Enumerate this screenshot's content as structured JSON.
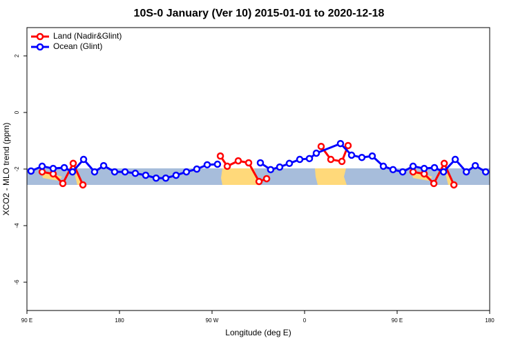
{
  "chart_data": {
    "type": "line",
    "title": "10S-0 January (Ver 10)   2015-01-01 to 2020-12-18",
    "x_label": "Longitude (deg E)",
    "y_label": "XCO2 - MLO trend (ppm)",
    "xlim": [
      90,
      540
    ],
    "xticks": [
      {
        "value": 90,
        "label": "90 E"
      },
      {
        "value": 180,
        "label": "180"
      },
      {
        "value": 270,
        "label": "90 W"
      },
      {
        "value": 360,
        "label": "0"
      },
      {
        "value": 450,
        "label": "90 E"
      },
      {
        "value": 540,
        "label": "180"
      }
    ],
    "ylim": [
      -7,
      3
    ],
    "yticks": [
      -6,
      -4,
      -2,
      0,
      2
    ],
    "legend": "top-left",
    "series": [
      {
        "name": "Land (Nadir&Glint)",
        "color": "#ff0000",
        "x": [
          104.8,
          115.5,
          124.9,
          135.0,
          144.4,
          null,
          278.1,
          284.8,
          295.5,
          305.6,
          315.7,
          323.1,
          null,
          376.1,
          385.5,
          396.3,
          402.3,
          null,
          465.5,
          476.3,
          485.7,
          495.8,
          505.2
        ],
        "values": [
          -2.1,
          -2.17,
          -2.51,
          -1.8,
          -2.56,
          null,
          -1.54,
          -1.9,
          -1.71,
          -1.78,
          -2.44,
          -2.34,
          null,
          -1.2,
          -1.66,
          -1.73,
          -1.17,
          null,
          -2.1,
          -2.17,
          -2.51,
          -1.8,
          -2.56
        ]
      },
      {
        "name": "Ocean (Glint)",
        "color": "#0000ff",
        "x": [
          94.0,
          104.8,
          115.5,
          126.3,
          134.3,
          145.1,
          155.8,
          164.6,
          175.3,
          185.4,
          195.4,
          205.5,
          215.6,
          225.0,
          235.0,
          245.1,
          255.2,
          265.3,
          275.3,
          null,
          317.0,
          327.0,
          335.8,
          345.2,
          355.3,
          364.7,
          371.4,
          394.9,
          405.7,
          415.7,
          425.8,
          436.6,
          446.0,
          455.4,
          465.5,
          476.3,
          486.3,
          495.1,
          506.5,
          517.3,
          526.0,
          536.1
        ],
        "values": [
          -2.07,
          -1.9,
          -1.98,
          -1.95,
          -2.1,
          -1.66,
          -2.1,
          -1.88,
          -2.1,
          -2.1,
          -2.15,
          -2.22,
          -2.32,
          -2.32,
          -2.22,
          -2.1,
          -2.0,
          -1.85,
          -1.83,
          null,
          -1.78,
          -2.02,
          -1.93,
          -1.8,
          -1.66,
          -1.63,
          -1.44,
          -1.1,
          -1.51,
          -1.59,
          -1.54,
          -1.9,
          -2.02,
          -2.1,
          -1.9,
          -1.98,
          -1.95,
          -2.1,
          -1.66,
          -2.1,
          -1.88,
          -2.1
        ]
      }
    ]
  }
}
